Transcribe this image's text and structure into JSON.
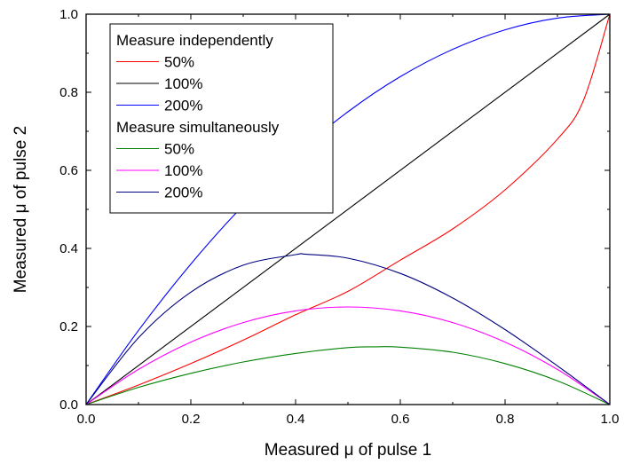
{
  "chart_data": {
    "type": "line",
    "xlabel": "Measured μ of pulse 1",
    "ylabel": "Measured μ of pulse 2",
    "xlim": [
      0.0,
      1.0
    ],
    "ylim": [
      0.0,
      1.0
    ],
    "x_ticks": [
      "0.0",
      "0.2",
      "0.4",
      "0.6",
      "0.8",
      "1.0"
    ],
    "y_ticks": [
      "0.0",
      "0.2",
      "0.4",
      "0.6",
      "0.8",
      "1.0"
    ],
    "grid": false,
    "legend_position": "top-left",
    "legend_groups": [
      {
        "title": "Measure independently",
        "series": [
          {
            "name": "50%",
            "color": "#ff0000",
            "x": [
              0.0,
              0.1,
              0.2,
              0.3,
              0.4,
              0.5,
              0.6,
              0.7,
              0.8,
              0.9,
              0.95,
              1.0
            ],
            "y": [
              0.0,
              0.05,
              0.105,
              0.165,
              0.23,
              0.29,
              0.37,
              0.45,
              0.55,
              0.68,
              0.78,
              1.0
            ]
          },
          {
            "name": "100%",
            "color": "#000000",
            "x": [
              0.0,
              1.0
            ],
            "y": [
              0.0,
              1.0
            ]
          },
          {
            "name": "200%",
            "color": "#0000ff",
            "x": [
              0.0,
              0.1,
              0.2,
              0.3,
              0.4,
              0.5,
              0.6,
              0.7,
              0.8,
              0.9,
              1.0
            ],
            "y": [
              0.0,
              0.19,
              0.36,
              0.51,
              0.64,
              0.75,
              0.84,
              0.91,
              0.96,
              0.99,
              1.0
            ]
          }
        ]
      },
      {
        "title": "Measure simultaneously",
        "series": [
          {
            "name": "50%",
            "color": "#008000",
            "x": [
              0.0,
              0.1,
              0.2,
              0.3,
              0.4,
              0.5,
              0.55,
              0.6,
              0.7,
              0.8,
              0.9,
              1.0
            ],
            "y": [
              0.0,
              0.044,
              0.08,
              0.109,
              0.131,
              0.146,
              0.148,
              0.147,
              0.134,
              0.105,
              0.061,
              0.0
            ]
          },
          {
            "name": "100%",
            "color": "#ff00ff",
            "x": [
              0.0,
              0.1,
              0.2,
              0.3,
              0.4,
              0.5,
              0.6,
              0.7,
              0.8,
              0.9,
              1.0
            ],
            "y": [
              0.0,
              0.09,
              0.16,
              0.21,
              0.24,
              0.25,
              0.24,
              0.21,
              0.16,
              0.09,
              0.0
            ]
          },
          {
            "name": "200%",
            "color": "#000080",
            "x": [
              0.0,
              0.1,
              0.2,
              0.3,
              0.4,
              0.42,
              0.5,
              0.6,
              0.7,
              0.8,
              0.9,
              1.0
            ],
            "y": [
              0.0,
              0.171,
              0.288,
              0.357,
              0.384,
              0.385,
              0.375,
              0.336,
              0.273,
              0.192,
              0.099,
              0.0
            ]
          }
        ]
      }
    ]
  }
}
